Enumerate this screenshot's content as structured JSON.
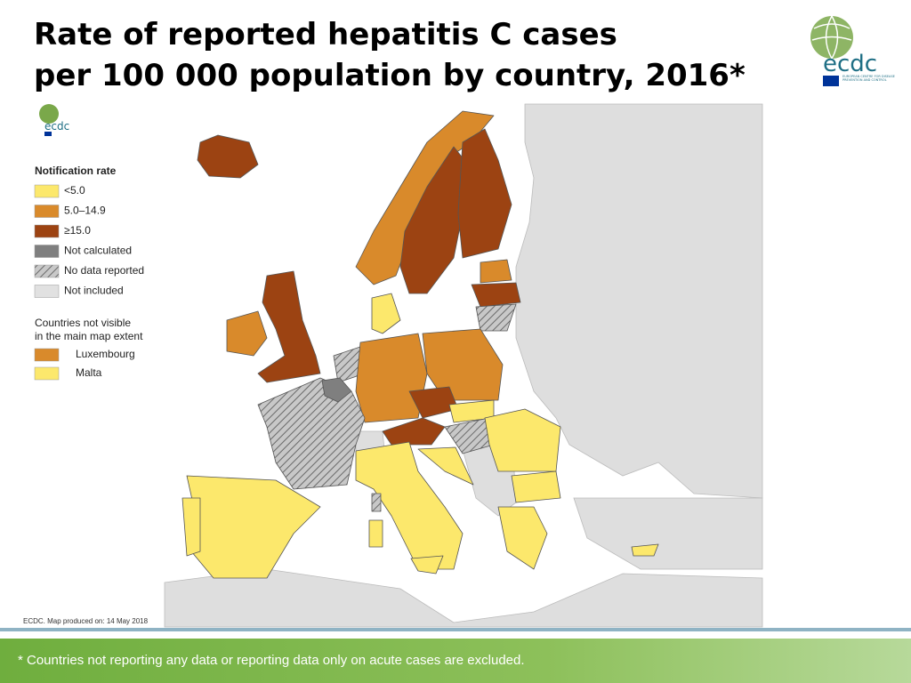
{
  "header": {
    "title_lines": [
      "Rate of reported hepatitis C cases",
      "per 100 000 population by country, 2016*"
    ]
  },
  "logo": {
    "name": "ecdc",
    "subtitle": "EUROPEAN CENTRE FOR DISEASE PREVENTION AND CONTROL"
  },
  "legend": {
    "title": "Notification rate",
    "items": [
      {
        "label": "<5.0",
        "color": "#fce86c"
      },
      {
        "label": "5.0–14.9",
        "color": "#d98a2b"
      },
      {
        "label": "≥15.0",
        "color": "#9c4312"
      },
      {
        "label": "Not calculated",
        "color": "#7f7f7f"
      },
      {
        "label": "No data reported",
        "color": "#a0a0a0",
        "hatched": true
      },
      {
        "label": "Not included",
        "color": "#e1e1e1"
      }
    ],
    "inset_title_lines": [
      "Countries not visible",
      "in the main map extent"
    ],
    "inset_items": [
      {
        "label": "Luxembourg",
        "color": "#d98a2b"
      },
      {
        "label": "Malta",
        "color": "#fce86c"
      }
    ]
  },
  "map_credit": "ECDC. Map produced on: 14 May 2018",
  "footnote": "* Countries not reporting any data or reporting data only on acute cases are excluded."
}
